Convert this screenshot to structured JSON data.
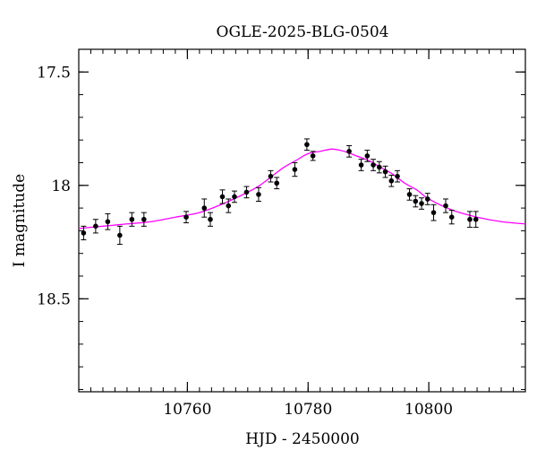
{
  "chart_data": {
    "type": "scatter",
    "title": "OGLE-2025-BLG-0504",
    "xlabel": "HJD - 2450000",
    "ylabel": "I magnitude",
    "xlim": [
      10742,
      10816
    ],
    "ylim": [
      18.91,
      17.4
    ],
    "y_inverted": true,
    "xticks_major": [
      10760,
      10780,
      10800
    ],
    "xticks_minor_step": 2,
    "yticks_major": [
      17.5,
      18,
      18.5
    ],
    "yticks_labels": [
      "17.5",
      "18",
      "18.5"
    ],
    "yticks_minor_step": 0.1,
    "grid": false,
    "colors": {
      "points": "#000000",
      "model": "#ff00ff"
    },
    "series": [
      {
        "type": "scatter_errorbar",
        "x": [
          10742.8,
          10744.8,
          10746.8,
          10748.8,
          10750.8,
          10752.8,
          10759.8,
          10762.8,
          10763.8,
          10765.8,
          10766.8,
          10767.8,
          10769.8,
          10771.8,
          10773.8,
          10774.8,
          10777.8,
          10779.8,
          10780.8,
          10786.8,
          10788.8,
          10789.8,
          10790.8,
          10791.8,
          10792.8,
          10793.8,
          10794.8,
          10796.8,
          10797.8,
          10798.8,
          10799.8,
          10800.8,
          10802.8,
          10803.8,
          10806.8,
          10807.8
        ],
        "y": [
          18.21,
          18.18,
          18.16,
          18.22,
          18.15,
          18.15,
          18.14,
          18.1,
          18.15,
          18.05,
          18.09,
          18.05,
          18.03,
          18.04,
          17.96,
          17.99,
          17.93,
          17.82,
          17.87,
          17.85,
          17.91,
          17.87,
          17.91,
          17.92,
          17.94,
          17.98,
          17.96,
          18.04,
          18.07,
          18.08,
          18.06,
          18.12,
          18.09,
          18.14,
          18.15,
          18.15
        ],
        "yerr": [
          0.03,
          0.03,
          0.035,
          0.04,
          0.03,
          0.03,
          0.025,
          0.04,
          0.03,
          0.03,
          0.03,
          0.025,
          0.025,
          0.03,
          0.025,
          0.025,
          0.03,
          0.025,
          0.02,
          0.025,
          0.025,
          0.025,
          0.025,
          0.025,
          0.025,
          0.025,
          0.025,
          0.025,
          0.025,
          0.025,
          0.025,
          0.035,
          0.03,
          0.03,
          0.035,
          0.035
        ]
      },
      {
        "type": "line",
        "x": [
          10742,
          10746,
          10750,
          10754,
          10758,
          10762,
          10766,
          10770,
          10772,
          10774,
          10776,
          10778,
          10780,
          10782,
          10784,
          10786,
          10788,
          10790,
          10792,
          10794,
          10796,
          10798,
          10800,
          10804,
          10808,
          10812,
          10816
        ],
        "y": [
          18.19,
          18.18,
          18.17,
          18.16,
          18.14,
          18.12,
          18.08,
          18.03,
          18.0,
          17.96,
          17.92,
          17.89,
          17.86,
          17.85,
          17.84,
          17.85,
          17.87,
          17.89,
          17.92,
          17.95,
          17.99,
          18.02,
          18.06,
          18.11,
          18.14,
          18.16,
          18.17
        ]
      }
    ]
  }
}
